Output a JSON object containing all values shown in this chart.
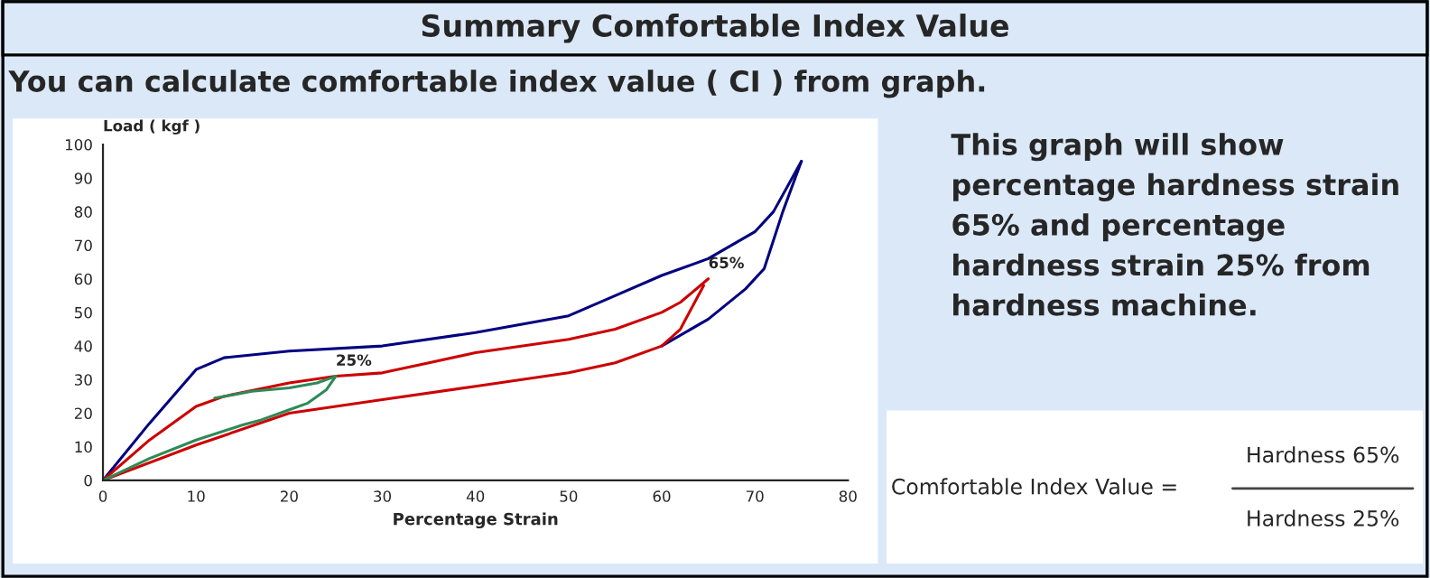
{
  "chart_data": {
    "type": "line",
    "title": "Summary Comfortable Index Value",
    "subtitle": "You can calculate comfortable index value ( CI ) from graph.",
    "xlabel": "Percentage Strain",
    "ylabel": "Load ( kgf )",
    "xlim": [
      0,
      80
    ],
    "xticks": [
      0,
      10,
      20,
      30,
      40,
      50,
      60,
      70,
      80
    ],
    "ylim": [
      0,
      100
    ],
    "yticks": [
      0,
      10,
      20,
      30,
      40,
      50,
      60,
      70,
      80,
      90,
      100
    ],
    "grid": false,
    "marker": "none",
    "line_style": "solid",
    "series": [
      {
        "color": "#000080",
        "x": [
          0,
          5,
          10,
          13,
          20,
          30,
          40,
          50,
          55,
          60,
          65,
          70,
          72,
          75
        ],
        "values": [
          0,
          17,
          33,
          36.5,
          38.5,
          40,
          44,
          49,
          55,
          61,
          66,
          74,
          80,
          95
        ]
      },
      {
        "color": "#000080",
        "x": [
          60,
          65,
          69,
          71,
          73,
          75
        ],
        "values": [
          40,
          48,
          57,
          63,
          80,
          95
        ]
      },
      {
        "color": "#cc0000",
        "x": [
          0,
          5,
          10,
          13,
          20,
          25,
          30,
          35,
          40,
          50,
          55,
          60,
          62,
          65
        ],
        "values": [
          0,
          12,
          22,
          25,
          29,
          31,
          32,
          35,
          38,
          42,
          45,
          50,
          53,
          60
        ]
      },
      {
        "color": "#cc0000",
        "x": [
          0,
          10,
          20,
          30,
          40,
          50,
          55,
          60,
          62,
          64.5
        ],
        "values": [
          0,
          10.5,
          20,
          24,
          28,
          32,
          35,
          40,
          45,
          58
        ]
      },
      {
        "color": "#2e8b57",
        "x": [
          12,
          16,
          20,
          23,
          25
        ],
        "values": [
          24.5,
          26.5,
          27.5,
          29,
          31
        ]
      },
      {
        "color": "#2e8b57",
        "x": [
          0,
          5,
          10,
          15,
          17,
          20,
          22,
          24,
          25
        ],
        "values": [
          0,
          6.5,
          12,
          16.5,
          18,
          21,
          23,
          27,
          31
        ]
      }
    ],
    "annotations": [
      {
        "text": "25%",
        "x": 25,
        "y": 31
      },
      {
        "text": "65%",
        "x": 65,
        "y": 60
      },
      "This graph will show\npercentage hardness strain\n65% and percentage\nhardness strain 25% from\nhardness machine.",
      "Comfortable Index Value =",
      "Hardness 65%",
      "Hardness 25%"
    ]
  }
}
